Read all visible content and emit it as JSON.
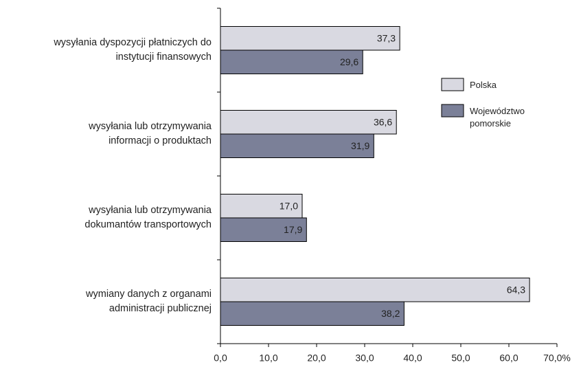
{
  "chart_data": {
    "type": "bar",
    "orientation": "horizontal",
    "categories": [
      "wysyłania dyspozycji płatniczych do\ninstytucji finansowych",
      "wysyłania lub otrzymywania\ninformacji o produktach",
      "wysyłania lub otrzymywania\ndokumantów transportowych",
      "wymiany danych z organami\nadministracji publicznej"
    ],
    "series": [
      {
        "name": "Polska",
        "color": "#d9d9e1",
        "values": [
          37.3,
          36.6,
          17.0,
          64.3
        ],
        "value_labels": [
          "37,3",
          "36,6",
          "17,0",
          "64,3"
        ]
      },
      {
        "name": "Województwo pomorskie",
        "color": "#7b8098",
        "values": [
          29.6,
          31.9,
          17.9,
          38.2
        ],
        "value_labels": [
          "29,6",
          "31,9",
          "17,9",
          "38,2"
        ]
      }
    ],
    "xlim": [
      0,
      70
    ],
    "xticks": [
      {
        "value": 0,
        "label": "0,0"
      },
      {
        "value": 10,
        "label": "10,0"
      },
      {
        "value": 20,
        "label": "20,0"
      },
      {
        "value": 30,
        "label": "30,0"
      },
      {
        "value": 40,
        "label": "40,0"
      },
      {
        "value": 50,
        "label": "50,0"
      },
      {
        "value": 60,
        "label": "60,0"
      },
      {
        "value": 70,
        "label": "70,0%"
      }
    ],
    "legend": "right"
  }
}
